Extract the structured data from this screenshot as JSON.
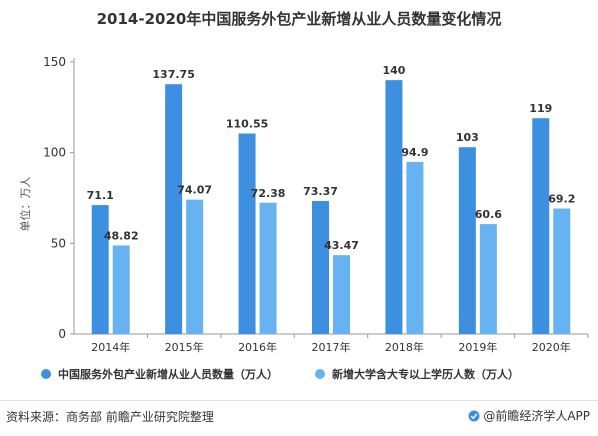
{
  "chart_data": {
    "type": "bar",
    "title": "2014-2020年中国服务外包产业新增从业人员数量变化情况",
    "ylabel": "单位：万人",
    "xlabel": "",
    "ylim": [
      0,
      150
    ],
    "yticks": [
      0,
      50,
      100,
      150
    ],
    "categories": [
      "2014年",
      "2015年",
      "2016年",
      "2017年",
      "2018年",
      "2019年",
      "2020年"
    ],
    "series": [
      {
        "name": "中国服务外包产业新增从业人员数量（万人）",
        "color": "#3d8fe0",
        "values": [
          71.1,
          137.75,
          110.55,
          73.37,
          140,
          103,
          119
        ],
        "labels": [
          "71.1",
          "137.75",
          "110.55",
          "73.37",
          "140",
          "103",
          "119"
        ]
      },
      {
        "name": "新增大学含大专以上学历人数（万人）",
        "color": "#67b3f2",
        "values": [
          48.82,
          74.07,
          72.38,
          43.47,
          94.9,
          60.6,
          69.2
        ],
        "labels": [
          "48.82",
          "74.07",
          "72.38",
          "43.47",
          "94.9",
          "60.6",
          "69.2"
        ]
      }
    ],
    "legend_position": "bottom",
    "grid": false
  },
  "footer": {
    "source": "资料来源：商务部 前瞻产业研究院整理",
    "brand": "@前瞻经济学人APP",
    "brand_icon": "qianzhan-logo-icon"
  }
}
